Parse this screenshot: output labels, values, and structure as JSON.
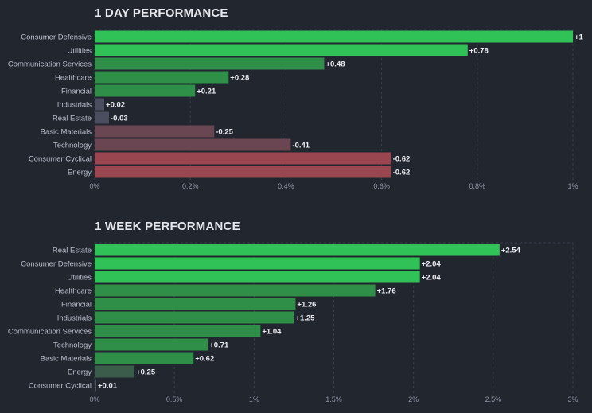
{
  "colors": {
    "background": "#22262f",
    "positive_strong": "#30c257",
    "positive_mid": "#2f8f48",
    "positive_weak": "#3b5c4a",
    "neutral": "#4a4e5e",
    "negative_weak": "#6a4552",
    "negative_strong": "#9a4650"
  },
  "chart_data": [
    {
      "type": "bar",
      "orientation": "horizontal",
      "title": "1 DAY PERFORMANCE",
      "categories": [
        "Consumer Defensive",
        "Utilities",
        "Communication Services",
        "Healthcare",
        "Financial",
        "Industrials",
        "Real Estate",
        "Basic Materials",
        "Technology",
        "Consumer Cyclical",
        "Energy"
      ],
      "values": [
        1,
        0.78,
        0.48,
        0.28,
        0.21,
        0.02,
        -0.03,
        -0.25,
        -0.41,
        -0.62,
        -0.62
      ],
      "value_labels": [
        "+1",
        "+0.78",
        "+0.48",
        "+0.28",
        "+0.21",
        "+0.02",
        "-0.03",
        "-0.25",
        "-0.41",
        "-0.62",
        "-0.62"
      ],
      "xlim": [
        0,
        1
      ],
      "xticks": [
        "0%",
        "0.2%",
        "0.4%",
        "0.6%",
        "0.8%",
        "1%"
      ],
      "grid": true,
      "bar_length": "absolute value"
    },
    {
      "type": "bar",
      "orientation": "horizontal",
      "title": "1 WEEK PERFORMANCE",
      "categories": [
        "Real Estate",
        "Consumer Defensive",
        "Utilities",
        "Healthcare",
        "Financial",
        "Industrials",
        "Communication Services",
        "Technology",
        "Basic Materials",
        "Energy",
        "Consumer Cyclical"
      ],
      "values": [
        2.54,
        2.04,
        2.04,
        1.76,
        1.26,
        1.25,
        1.04,
        0.71,
        0.62,
        0.25,
        0.01
      ],
      "value_labels": [
        "+2.54",
        "+2.04",
        "+2.04",
        "+1.76",
        "+1.26",
        "+1.25",
        "+1.04",
        "+0.71",
        "+0.62",
        "+0.25",
        "+0.01"
      ],
      "xlim": [
        0,
        3
      ],
      "xticks": [
        "0%",
        "0.5%",
        "1%",
        "1.5%",
        "2%",
        "2.5%",
        "3%"
      ],
      "grid": true,
      "bar_length": "absolute value"
    }
  ]
}
